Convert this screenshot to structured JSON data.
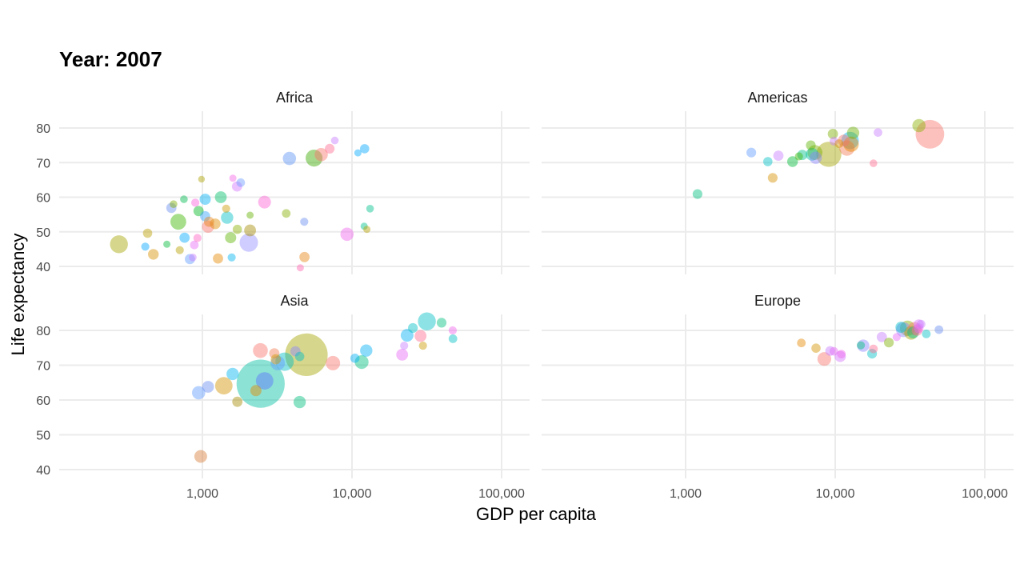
{
  "chart_data": {
    "type": "scatter",
    "title": "Year: 2007",
    "xlabel": "GDP per capita",
    "ylabel": "Life expectancy",
    "xscale": "log10",
    "xlim": [
      100,
      150000
    ],
    "ylim": [
      37,
      85
    ],
    "xticks": [
      1000,
      10000,
      100000
    ],
    "xtick_labels": [
      "1,000",
      "10,000",
      "100,000"
    ],
    "yticks": [
      40,
      50,
      60,
      70,
      80
    ],
    "ytick_labels": [
      "40",
      "50",
      "60",
      "70",
      "80"
    ],
    "grid": true,
    "legend": "none",
    "facets": [
      {
        "name": "Africa",
        "points": [
          {
            "x": 277,
            "y": 46.4,
            "s": 3.5,
            "color": "#a3a500"
          },
          {
            "x": 415,
            "y": 45.7,
            "s": 1.6,
            "color": "#00a5ff"
          },
          {
            "x": 470,
            "y": 43.5,
            "s": 2.1,
            "color": "#d89000"
          },
          {
            "x": 430,
            "y": 49.6,
            "s": 1.8,
            "color": "#bb9d00"
          },
          {
            "x": 579,
            "y": 46.4,
            "s": 1.4,
            "color": "#00ba38"
          },
          {
            "x": 620,
            "y": 56.9,
            "s": 2.0,
            "color": "#6b8ef0"
          },
          {
            "x": 641,
            "y": 58.0,
            "s": 1.5,
            "color": "#7cae00"
          },
          {
            "x": 706,
            "y": 44.7,
            "s": 1.6,
            "color": "#b79f00"
          },
          {
            "x": 690,
            "y": 52.9,
            "s": 3.1,
            "color": "#39b600"
          },
          {
            "x": 752,
            "y": 59.4,
            "s": 1.5,
            "color": "#00bb4e"
          },
          {
            "x": 760,
            "y": 48.3,
            "s": 2.0,
            "color": "#00a9ff"
          },
          {
            "x": 825,
            "y": 42.1,
            "s": 2.0,
            "color": "#619cff"
          },
          {
            "x": 863,
            "y": 42.6,
            "s": 1.5,
            "color": "#c77cff"
          },
          {
            "x": 883,
            "y": 46.2,
            "s": 1.7,
            "color": "#e76bf3"
          },
          {
            "x": 926,
            "y": 48.2,
            "s": 1.6,
            "color": "#ff61c3"
          },
          {
            "x": 896,
            "y": 58.4,
            "s": 1.6,
            "color": "#fa62db"
          },
          {
            "x": 986,
            "y": 65.2,
            "s": 1.3,
            "color": "#aea200"
          },
          {
            "x": 943,
            "y": 56.0,
            "s": 2.0,
            "color": "#00b81f"
          },
          {
            "x": 1044,
            "y": 59.4,
            "s": 2.2,
            "color": "#00b0f6"
          },
          {
            "x": 1043,
            "y": 54.5,
            "s": 2.0,
            "color": "#35a2ff"
          },
          {
            "x": 1091,
            "y": 51.5,
            "s": 2.4,
            "color": "#f8766d"
          },
          {
            "x": 1107,
            "y": 52.9,
            "s": 2.0,
            "color": "#e7861b"
          },
          {
            "x": 1218,
            "y": 52.3,
            "s": 2.1,
            "color": "#de8c00"
          },
          {
            "x": 1271,
            "y": 42.3,
            "s": 2.0,
            "color": "#e58700"
          },
          {
            "x": 1328,
            "y": 60.0,
            "s": 2.3,
            "color": "#00be67"
          },
          {
            "x": 1441,
            "y": 56.7,
            "s": 1.6,
            "color": "#c99800"
          },
          {
            "x": 1463,
            "y": 54.1,
            "s": 2.4,
            "color": "#00bfc4"
          },
          {
            "x": 1545,
            "y": 48.3,
            "s": 2.2,
            "color": "#5bb300"
          },
          {
            "x": 1570,
            "y": 42.6,
            "s": 1.6,
            "color": "#00b4f0"
          },
          {
            "x": 1598,
            "y": 65.5,
            "s": 1.4,
            "color": "#f365e6"
          },
          {
            "x": 1704,
            "y": 63.1,
            "s": 2.0,
            "color": "#d575fe"
          },
          {
            "x": 1712,
            "y": 50.7,
            "s": 1.8,
            "color": "#8ab200"
          },
          {
            "x": 1803,
            "y": 64.2,
            "s": 1.7,
            "color": "#6f9cff"
          },
          {
            "x": 2042,
            "y": 46.9,
            "s": 3.6,
            "color": "#9590ff"
          },
          {
            "x": 2082,
            "y": 50.4,
            "s": 2.3,
            "color": "#a58b00"
          },
          {
            "x": 2082,
            "y": 54.8,
            "s": 1.4,
            "color": "#64b200"
          },
          {
            "x": 2602,
            "y": 58.6,
            "s": 2.5,
            "color": "#fc61d5"
          },
          {
            "x": 3633,
            "y": 55.3,
            "s": 1.7,
            "color": "#86ac00"
          },
          {
            "x": 3820,
            "y": 71.2,
            "s": 2.6,
            "color": "#5e93f5"
          },
          {
            "x": 4513,
            "y": 39.6,
            "s": 1.4,
            "color": "#ff64b0"
          },
          {
            "x": 4797,
            "y": 52.9,
            "s": 1.6,
            "color": "#6b8ef0"
          },
          {
            "x": 4811,
            "y": 42.7,
            "s": 2.0,
            "color": "#e68613"
          },
          {
            "x": 5581,
            "y": 71.3,
            "s": 3.3,
            "color": "#3aa800"
          },
          {
            "x": 6223,
            "y": 72.3,
            "s": 2.6,
            "color": "#f8766d"
          },
          {
            "x": 7093,
            "y": 74.0,
            "s": 1.9,
            "color": "#ff6c91"
          },
          {
            "x": 7670,
            "y": 76.4,
            "s": 1.5,
            "color": "#c77cff"
          },
          {
            "x": 9270,
            "y": 49.3,
            "s": 2.6,
            "color": "#ef67eb"
          },
          {
            "x": 10957,
            "y": 72.8,
            "s": 1.4,
            "color": "#00a9ff"
          },
          {
            "x": 12058,
            "y": 51.6,
            "s": 1.4,
            "color": "#00c08b"
          },
          {
            "x": 12154,
            "y": 74.0,
            "s": 1.8,
            "color": "#00a6ff"
          },
          {
            "x": 12570,
            "y": 50.7,
            "s": 1.4,
            "color": "#b79f00"
          },
          {
            "x": 13206,
            "y": 56.7,
            "s": 1.5,
            "color": "#00c08b"
          }
        ]
      },
      {
        "name": "Americas",
        "points": [
          {
            "x": 1202,
            "y": 60.9,
            "s": 1.9,
            "color": "#00bf7d"
          },
          {
            "x": 2749,
            "y": 72.9,
            "s": 1.9,
            "color": "#619cff"
          },
          {
            "x": 3548,
            "y": 70.3,
            "s": 1.8,
            "color": "#00bfc4"
          },
          {
            "x": 3822,
            "y": 65.6,
            "s": 1.9,
            "color": "#d89000"
          },
          {
            "x": 4173,
            "y": 72.0,
            "s": 2.0,
            "color": "#c77cff"
          },
          {
            "x": 5186,
            "y": 70.3,
            "s": 2.1,
            "color": "#00ba38"
          },
          {
            "x": 5728,
            "y": 71.8,
            "s": 1.6,
            "color": "#39b600"
          },
          {
            "x": 6025,
            "y": 72.2,
            "s": 2.0,
            "color": "#00c08b"
          },
          {
            "x": 6873,
            "y": 75.0,
            "s": 1.9,
            "color": "#5bb300"
          },
          {
            "x": 7006,
            "y": 72.4,
            "s": 2.5,
            "color": "#00c19f"
          },
          {
            "x": 7321,
            "y": 72.9,
            "s": 2.9,
            "color": "#7cae00"
          },
          {
            "x": 7409,
            "y": 71.4,
            "s": 2.4,
            "color": "#8c84ff"
          },
          {
            "x": 9065,
            "y": 72.4,
            "s": 4.9,
            "color": "#a3a500"
          },
          {
            "x": 9645,
            "y": 78.3,
            "s": 2.0,
            "color": "#7cae00"
          },
          {
            "x": 9810,
            "y": 76.2,
            "s": 1.7,
            "color": "#ca7cf5"
          },
          {
            "x": 10611,
            "y": 75.5,
            "s": 1.7,
            "color": "#d39200"
          },
          {
            "x": 11416,
            "y": 76.4,
            "s": 2.3,
            "color": "#f8766d"
          },
          {
            "x": 11978,
            "y": 74.2,
            "s": 3.0,
            "color": "#f27d52"
          },
          {
            "x": 12570,
            "y": 76.4,
            "s": 3.4,
            "color": "#00b0f6"
          },
          {
            "x": 12779,
            "y": 75.3,
            "s": 3.0,
            "color": "#e58700"
          },
          {
            "x": 13172,
            "y": 78.6,
            "s": 2.4,
            "color": "#6bb100"
          },
          {
            "x": 18009,
            "y": 69.8,
            "s": 1.5,
            "color": "#ff6c91"
          },
          {
            "x": 19329,
            "y": 78.7,
            "s": 1.7,
            "color": "#c77cff"
          },
          {
            "x": 36319,
            "y": 80.7,
            "s": 2.6,
            "color": "#8ab200"
          },
          {
            "x": 42952,
            "y": 78.2,
            "s": 5.6,
            "color": "#f8766d"
          }
        ]
      },
      {
        "name": "Asia",
        "points": [
          {
            "x": 974,
            "y": 43.8,
            "s": 2.5,
            "color": "#d67f3a"
          },
          {
            "x": 944,
            "y": 62.1,
            "s": 2.6,
            "color": "#619cff"
          },
          {
            "x": 1091,
            "y": 63.8,
            "s": 2.3,
            "color": "#6b8ef0"
          },
          {
            "x": 1391,
            "y": 64.1,
            "s": 3.4,
            "color": "#d39200"
          },
          {
            "x": 1593,
            "y": 67.5,
            "s": 2.4,
            "color": "#00b4f0"
          },
          {
            "x": 1713,
            "y": 59.5,
            "s": 2.0,
            "color": "#a58b00"
          },
          {
            "x": 2452,
            "y": 64.7,
            "s": 9.4,
            "color": "#00bf9f"
          },
          {
            "x": 2605,
            "y": 65.5,
            "s": 3.4,
            "color": "#5e74ff"
          },
          {
            "x": 2280,
            "y": 62.7,
            "s": 2.2,
            "color": "#e58700"
          },
          {
            "x": 2441,
            "y": 74.2,
            "s": 2.9,
            "color": "#f8766d"
          },
          {
            "x": 3025,
            "y": 73.4,
            "s": 2.0,
            "color": "#f27d52"
          },
          {
            "x": 3096,
            "y": 71.7,
            "s": 2.0,
            "color": "#c99800"
          },
          {
            "x": 3190,
            "y": 70.6,
            "s": 2.8,
            "color": "#619cff"
          },
          {
            "x": 3541,
            "y": 71.0,
            "s": 3.6,
            "color": "#00bfc4"
          },
          {
            "x": 4187,
            "y": 74.0,
            "s": 2.0,
            "color": "#8c84ff"
          },
          {
            "x": 4471,
            "y": 72.5,
            "s": 1.8,
            "color": "#00bfc4"
          },
          {
            "x": 4471,
            "y": 59.4,
            "s": 2.4,
            "color": "#00bf7d"
          },
          {
            "x": 4959,
            "y": 73.0,
            "s": 8.3,
            "color": "#a3a500"
          },
          {
            "x": 7458,
            "y": 70.6,
            "s": 2.8,
            "color": "#f8766d"
          },
          {
            "x": 10461,
            "y": 72.0,
            "s": 1.8,
            "color": "#00b0f6"
          },
          {
            "x": 11606,
            "y": 70.9,
            "s": 2.7,
            "color": "#00bf7d"
          },
          {
            "x": 12452,
            "y": 74.2,
            "s": 2.4,
            "color": "#00b0f6"
          },
          {
            "x": 21655,
            "y": 73.0,
            "s": 2.3,
            "color": "#e76bf3"
          },
          {
            "x": 22316,
            "y": 75.6,
            "s": 1.6,
            "color": "#c77cff"
          },
          {
            "x": 23348,
            "y": 78.6,
            "s": 2.5,
            "color": "#00b0f6"
          },
          {
            "x": 25523,
            "y": 80.7,
            "s": 1.9,
            "color": "#00bfc4"
          },
          {
            "x": 28718,
            "y": 78.4,
            "s": 2.3,
            "color": "#ff6c91"
          },
          {
            "x": 29796,
            "y": 75.6,
            "s": 1.6,
            "color": "#c99800"
          },
          {
            "x": 31656,
            "y": 82.6,
            "s": 3.5,
            "color": "#00bfc4"
          },
          {
            "x": 39725,
            "y": 82.2,
            "s": 1.9,
            "color": "#00bf7d"
          },
          {
            "x": 47143,
            "y": 80.0,
            "s": 1.6,
            "color": "#ef67eb"
          },
          {
            "x": 47307,
            "y": 77.6,
            "s": 1.7,
            "color": "#00bfc4"
          }
        ]
      },
      {
        "name": "Europe",
        "points": [
          {
            "x": 5937,
            "y": 76.4,
            "s": 1.7,
            "color": "#e58700"
          },
          {
            "x": 7446,
            "y": 74.9,
            "s": 1.8,
            "color": "#d39200"
          },
          {
            "x": 8458,
            "y": 71.8,
            "s": 2.7,
            "color": "#f8766d"
          },
          {
            "x": 9254,
            "y": 74.1,
            "s": 1.9,
            "color": "#c77cff"
          },
          {
            "x": 9787,
            "y": 74.0,
            "s": 1.7,
            "color": "#e76bf3"
          },
          {
            "x": 10808,
            "y": 72.5,
            "s": 2.2,
            "color": "#d575fe"
          },
          {
            "x": 11000,
            "y": 73.2,
            "s": 1.7,
            "color": "#ef67eb"
          },
          {
            "x": 14843,
            "y": 75.7,
            "s": 1.6,
            "color": "#00bf7d"
          },
          {
            "x": 15390,
            "y": 75.6,
            "s": 2.4,
            "color": "#8c84ff"
          },
          {
            "x": 17642,
            "y": 73.3,
            "s": 1.9,
            "color": "#00bfc4"
          },
          {
            "x": 18009,
            "y": 74.7,
            "s": 1.7,
            "color": "#ff6c91"
          },
          {
            "x": 20510,
            "y": 78.1,
            "s": 2.0,
            "color": "#c77cff"
          },
          {
            "x": 22833,
            "y": 76.5,
            "s": 1.9,
            "color": "#7cae00"
          },
          {
            "x": 25768,
            "y": 78.1,
            "s": 1.6,
            "color": "#e76bf3"
          },
          {
            "x": 27538,
            "y": 80.9,
            "s": 2.2,
            "color": "#00bfc4"
          },
          {
            "x": 28570,
            "y": 80.2,
            "s": 2.9,
            "color": "#8c84ff"
          },
          {
            "x": 30470,
            "y": 80.6,
            "s": 3.0,
            "color": "#8ab200"
          },
          {
            "x": 32170,
            "y": 79.3,
            "s": 2.7,
            "color": "#a3a500"
          },
          {
            "x": 33207,
            "y": 79.4,
            "s": 2.3,
            "color": "#00c08b"
          },
          {
            "x": 33860,
            "y": 80.5,
            "s": 2.6,
            "color": "#f8766d"
          },
          {
            "x": 35278,
            "y": 80.0,
            "s": 2.1,
            "color": "#ff6c91"
          },
          {
            "x": 36126,
            "y": 80.6,
            "s": 1.9,
            "color": "#e76bf3"
          },
          {
            "x": 36181,
            "y": 81.7,
            "s": 2.0,
            "color": "#d575fe"
          },
          {
            "x": 37506,
            "y": 81.8,
            "s": 1.7,
            "color": "#c77cff"
          },
          {
            "x": 40676,
            "y": 79.0,
            "s": 1.7,
            "color": "#00bfc4"
          },
          {
            "x": 49357,
            "y": 80.2,
            "s": 1.7,
            "color": "#6b8ef0"
          }
        ]
      }
    ]
  }
}
